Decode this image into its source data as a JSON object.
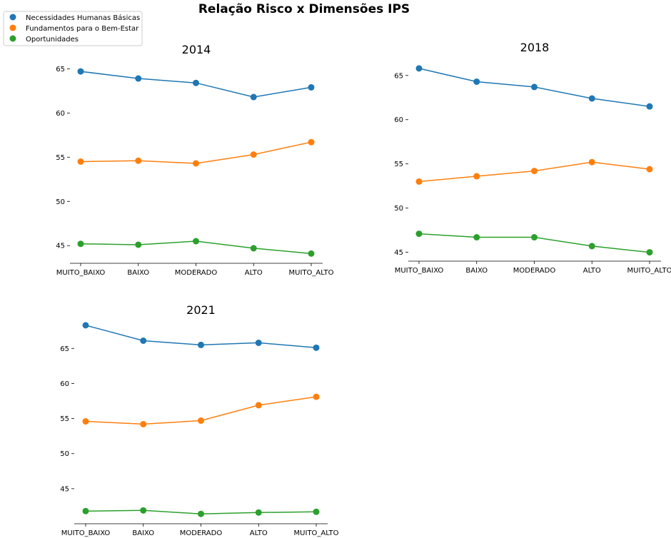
{
  "chart_data": {
    "type": "line",
    "title": "Relação Risco x Dimensões IPS",
    "categories": [
      "MUITO_BAIXO",
      "BAIXO",
      "MODERADO",
      "ALTO",
      "MUITO_ALTO"
    ],
    "legend": {
      "placement": "top-left",
      "entries": [
        "Necessidades Humanas Básicas",
        "Fundamentos para o Bem-Estar",
        "Oportunidades"
      ]
    },
    "colors": [
      "#1f77b4",
      "#ff7f0e",
      "#2ca02c"
    ],
    "grid": false,
    "panels": [
      {
        "title": "2014",
        "ylim": [
          43,
          66
        ],
        "yticks": [
          45,
          50,
          55,
          60,
          65
        ],
        "series": [
          {
            "name": "Necessidades Humanas Básicas",
            "values": [
              64.7,
              63.9,
              63.4,
              61.8,
              62.9
            ]
          },
          {
            "name": "Fundamentos para o Bem-Estar",
            "values": [
              54.5,
              54.6,
              54.3,
              55.3,
              56.7
            ]
          },
          {
            "name": "Oportunidades",
            "values": [
              45.2,
              45.1,
              45.5,
              44.7,
              44.1
            ]
          }
        ]
      },
      {
        "title": "2018",
        "ylim": [
          44,
          67
        ],
        "yticks": [
          45,
          50,
          55,
          60,
          65
        ],
        "series": [
          {
            "name": "Necessidades Humanas Básicas",
            "values": [
              65.8,
              64.3,
              63.7,
              62.4,
              61.5
            ]
          },
          {
            "name": "Fundamentos para o Bem-Estar",
            "values": [
              53.0,
              53.6,
              54.2,
              55.2,
              54.4
            ]
          },
          {
            "name": "Oportunidades",
            "values": [
              47.1,
              46.7,
              46.7,
              45.7,
              45.0
            ]
          }
        ]
      },
      {
        "title": "2021",
        "ylim": [
          40,
          69
        ],
        "yticks": [
          45,
          50,
          55,
          60,
          65
        ],
        "series": [
          {
            "name": "Necessidades Humanas Básicas",
            "values": [
              68.3,
              66.1,
              65.5,
              65.8,
              65.1
            ]
          },
          {
            "name": "Fundamentos para o Bem-Estar",
            "values": [
              54.6,
              54.2,
              54.7,
              56.9,
              58.1
            ]
          },
          {
            "name": "Oportunidades",
            "values": [
              41.8,
              41.9,
              41.4,
              41.6,
              41.7
            ]
          }
        ]
      }
    ]
  }
}
